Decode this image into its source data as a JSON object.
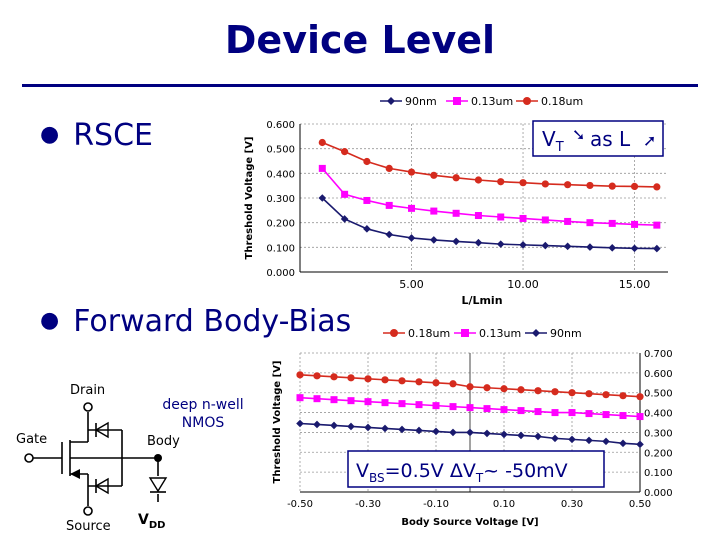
{
  "slide": {
    "title": "Device Level",
    "bullets": [
      "RSCE",
      "Forward Body-Bias"
    ]
  },
  "colors": {
    "title": "#000080",
    "red": "#d52b1e",
    "magenta": "#ff00ff",
    "navy": "#1a1a6e"
  },
  "diagram": {
    "drain": "Drain",
    "gate": "Gate",
    "body": "Body",
    "source": "Source",
    "vdd": "V",
    "vdd_sub": "DD",
    "note_line1": "deep n-well",
    "note_line2": "NMOS"
  },
  "chart_data": [
    {
      "type": "line",
      "xlabel": "L/Lmin",
      "ylabel": "Threshold Voltage [V]",
      "xlim": [
        0,
        16.5
      ],
      "ylim": [
        0,
        0.6
      ],
      "x_ticks": [
        "5.00",
        "10.00",
        "15.00"
      ],
      "y_ticks": [
        "0.000",
        "0.100",
        "0.200",
        "0.300",
        "0.400",
        "0.500",
        "0.600"
      ],
      "legend_position": "top",
      "grid": true,
      "annotation": {
        "v": "V",
        "sub": "T",
        "mid": " as L"
      },
      "x": [
        1,
        2,
        3,
        4,
        5,
        6,
        7,
        8,
        9,
        10,
        11,
        12,
        13,
        14,
        15,
        16
      ],
      "series": [
        {
          "name": "90nm",
          "marker": "diamond",
          "values": [
            0.3,
            0.215,
            0.175,
            0.152,
            0.138,
            0.13,
            0.124,
            0.119,
            0.113,
            0.11,
            0.107,
            0.104,
            0.101,
            0.098,
            0.096,
            0.095
          ]
        },
        {
          "name": "0.13um",
          "marker": "square",
          "values": [
            0.42,
            0.315,
            0.29,
            0.27,
            0.258,
            0.247,
            0.238,
            0.229,
            0.223,
            0.217,
            0.211,
            0.205,
            0.2,
            0.197,
            0.193,
            0.19
          ]
        },
        {
          "name": "0.18um",
          "marker": "circle",
          "values": [
            0.525,
            0.488,
            0.448,
            0.42,
            0.405,
            0.392,
            0.382,
            0.373,
            0.366,
            0.362,
            0.357,
            0.354,
            0.351,
            0.348,
            0.347,
            0.345
          ]
        }
      ]
    },
    {
      "type": "line",
      "xlabel": "Body Source Voltage [V]",
      "ylabel": "Threshold Voltage [V]",
      "xlim": [
        -0.5,
        0.5
      ],
      "ylim": [
        0,
        0.7
      ],
      "x_ticks": [
        "-0.50",
        "-0.30",
        "-0.10",
        "0.10",
        "0.30",
        "0.50"
      ],
      "y_ticks": [
        "0.000",
        "0.100",
        "0.200",
        "0.300",
        "0.400",
        "0.500",
        "0.600",
        "0.700"
      ],
      "legend_position": "top",
      "grid": true,
      "annotation": {
        "vbs": "V",
        "vbs_sub": "BS",
        "mid": "=0.5V ",
        "delta": "ΔV",
        "dv_sub": "T",
        "tail": "~ -50mV"
      },
      "x": [
        -0.5,
        -0.45,
        -0.4,
        -0.35,
        -0.3,
        -0.25,
        -0.2,
        -0.15,
        -0.1,
        -0.05,
        0,
        0.05,
        0.1,
        0.15,
        0.2,
        0.25,
        0.3,
        0.35,
        0.4,
        0.45,
        0.5
      ],
      "series": [
        {
          "name": "0.18um",
          "marker": "circle",
          "values": [
            0.59,
            0.585,
            0.58,
            0.575,
            0.57,
            0.565,
            0.56,
            0.555,
            0.55,
            0.545,
            0.53,
            0.525,
            0.52,
            0.515,
            0.51,
            0.505,
            0.5,
            0.495,
            0.49,
            0.485,
            0.48
          ]
        },
        {
          "name": "0.13um",
          "marker": "square",
          "values": [
            0.475,
            0.47,
            0.465,
            0.46,
            0.455,
            0.45,
            0.445,
            0.44,
            0.435,
            0.43,
            0.425,
            0.42,
            0.415,
            0.41,
            0.405,
            0.4,
            0.4,
            0.395,
            0.39,
            0.385,
            0.38
          ]
        },
        {
          "name": "90nm",
          "marker": "diamond",
          "values": [
            0.345,
            0.34,
            0.335,
            0.33,
            0.325,
            0.32,
            0.315,
            0.31,
            0.305,
            0.3,
            0.3,
            0.295,
            0.29,
            0.285,
            0.28,
            0.27,
            0.265,
            0.26,
            0.255,
            0.245,
            0.24
          ]
        }
      ]
    }
  ]
}
